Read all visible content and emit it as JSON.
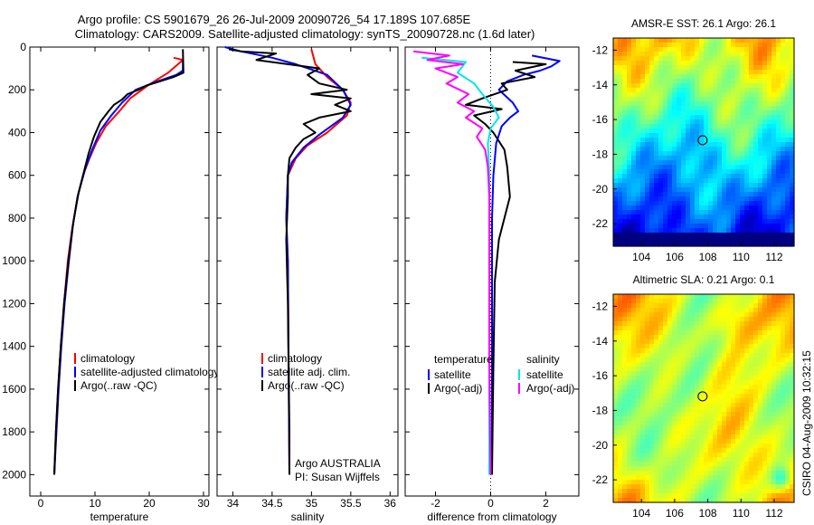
{
  "header": {
    "line1": "Argo profile: CS 5901679_26 26-Jul-2009 20090726_54 17.189S 107.685E",
    "line2": "Climatology: CARS2009. Satellite-adjusted climatology: synTS_20090728.nc (1.6d later)"
  },
  "credits": {
    "program": "Argo AUSTRALIA",
    "pi": "PI: Susan Wijffels",
    "stamp": "CSIRO 04-Aug-2009 10:32:15"
  },
  "colors": {
    "climatology": "#ff0000",
    "satellite": "#0000ff",
    "argo": "#000000",
    "sat_salinity": "#00e5e5",
    "argo_salinity_adj": "#ff00ff"
  },
  "chart_data": [
    {
      "type": "line",
      "name": "temperature",
      "xlabel": "temperature",
      "xlim": [
        -2,
        31
      ],
      "ylim": [
        2100,
        0
      ],
      "xticks": [
        "0",
        "10",
        "20",
        "30"
      ],
      "xtick_values": [
        0,
        10,
        20,
        30
      ],
      "yticks": [
        "0",
        "200",
        "400",
        "600",
        "800",
        "1000",
        "1200",
        "1400",
        "1600",
        "1800",
        "2000"
      ],
      "ytick_values": [
        0,
        200,
        400,
        600,
        800,
        1000,
        1200,
        1400,
        1600,
        1800,
        2000
      ],
      "legend": [
        "climatology",
        "satellite-adjusted climatology",
        "Argo(..raw -QC)"
      ],
      "series": [
        {
          "name": "climatology",
          "color": "climatology",
          "points": [
            [
              24.5,
              50
            ],
            [
              26.2,
              60
            ],
            [
              23.5,
              120
            ],
            [
              20,
              175
            ],
            [
              16.5,
              240
            ],
            [
              14.5,
              300
            ],
            [
              12,
              370
            ],
            [
              10.2,
              450
            ],
            [
              9,
              520
            ],
            [
              7.8,
              600
            ],
            [
              6.8,
              700
            ],
            [
              5.8,
              850
            ],
            [
              5,
              1000
            ],
            [
              4.3,
              1200
            ],
            [
              3.7,
              1400
            ],
            [
              3.2,
              1600
            ],
            [
              2.8,
              1800
            ],
            [
              2.5,
              2000
            ]
          ]
        },
        {
          "name": "satellite-adjusted climatology",
          "color": "satellite",
          "points": [
            [
              26.2,
              60
            ],
            [
              26.2,
              110
            ],
            [
              25,
              130
            ],
            [
              21,
              165
            ],
            [
              17.5,
              200
            ],
            [
              15,
              260
            ],
            [
              13,
              320
            ],
            [
              11,
              390
            ],
            [
              9.5,
              480
            ],
            [
              8.2,
              570
            ],
            [
              7,
              680
            ],
            [
              6,
              820
            ],
            [
              5.2,
              1000
            ],
            [
              4.4,
              1200
            ],
            [
              3.8,
              1400
            ],
            [
              3.3,
              1600
            ],
            [
              2.9,
              1800
            ],
            [
              2.5,
              2000
            ]
          ]
        },
        {
          "name": "Argo(..raw -QC)",
          "color": "argo",
          "points": [
            [
              26.2,
              10
            ],
            [
              26.3,
              120
            ],
            [
              24.5,
              140
            ],
            [
              22,
              160
            ],
            [
              19.5,
              180
            ],
            [
              18,
              200
            ],
            [
              16,
              220
            ],
            [
              15,
              245
            ],
            [
              13.5,
              270
            ],
            [
              12.5,
              300
            ],
            [
              11,
              350
            ],
            [
              9.8,
              420
            ],
            [
              8.8,
              500
            ],
            [
              7.8,
              600
            ],
            [
              6.8,
              700
            ],
            [
              5.9,
              840
            ],
            [
              5.1,
              1000
            ],
            [
              4.3,
              1200
            ],
            [
              3.7,
              1400
            ],
            [
              3.2,
              1600
            ],
            [
              2.8,
              1800
            ],
            [
              2.5,
              2000
            ]
          ]
        }
      ]
    },
    {
      "type": "line",
      "name": "salinity",
      "xlabel": "salinity",
      "xlim": [
        33.8,
        36.1
      ],
      "ylim": [
        2100,
        0
      ],
      "xticks": [
        "34",
        "34.5",
        "35",
        "35.5",
        "36"
      ],
      "xtick_values": [
        34,
        34.5,
        35,
        35.5,
        36
      ],
      "legend": [
        "climatology",
        "satellite adj. clim.",
        "Argo(..raw -QC)"
      ],
      "series": [
        {
          "name": "climatology",
          "color": "climatology",
          "points": [
            [
              35.0,
              10
            ],
            [
              35.05,
              80
            ],
            [
              35.2,
              140
            ],
            [
              35.4,
              200
            ],
            [
              35.5,
              260
            ],
            [
              35.45,
              320
            ],
            [
              35.2,
              400
            ],
            [
              34.95,
              460
            ],
            [
              34.8,
              520
            ],
            [
              34.7,
              600
            ],
            [
              34.68,
              800
            ],
            [
              34.7,
              1000
            ],
            [
              34.71,
              1500
            ],
            [
              34.72,
              2000
            ]
          ]
        },
        {
          "name": "satellite adj. clim.",
          "color": "satellite",
          "points": [
            [
              33.9,
              0
            ],
            [
              34.1,
              20
            ],
            [
              34.5,
              50
            ],
            [
              34.8,
              80
            ],
            [
              35.2,
              130
            ],
            [
              35.4,
              200
            ],
            [
              35.5,
              270
            ],
            [
              35.4,
              330
            ],
            [
              35.1,
              410
            ],
            [
              34.9,
              470
            ],
            [
              34.75,
              540
            ],
            [
              34.7,
              600
            ],
            [
              34.68,
              800
            ],
            [
              34.7,
              1000
            ],
            [
              34.71,
              1500
            ],
            [
              34.72,
              2000
            ]
          ]
        },
        {
          "name": "Argo(..raw -QC)",
          "color": "argo",
          "points": [
            [
              33.95,
              10
            ],
            [
              34.1,
              20
            ],
            [
              34.55,
              30
            ],
            [
              34.3,
              60
            ],
            [
              34.9,
              90
            ],
            [
              35.1,
              100
            ],
            [
              34.95,
              130
            ],
            [
              35.1,
              170
            ],
            [
              35.45,
              200
            ],
            [
              35.0,
              220
            ],
            [
              35.5,
              240
            ],
            [
              35.3,
              270
            ],
            [
              35.5,
              300
            ],
            [
              35.1,
              330
            ],
            [
              34.9,
              360
            ],
            [
              35.05,
              400
            ],
            [
              34.9,
              430
            ],
            [
              34.8,
              470
            ],
            [
              34.72,
              520
            ],
            [
              34.7,
              600
            ],
            [
              34.7,
              700
            ],
            [
              34.68,
              900
            ],
            [
              34.7,
              1200
            ],
            [
              34.71,
              1500
            ],
            [
              34.72,
              1800
            ],
            [
              34.72,
              2000
            ]
          ]
        }
      ]
    },
    {
      "type": "line",
      "name": "difference",
      "xlabel": "difference from climatology",
      "xlim": [
        -3.1,
        3.2
      ],
      "ylim": [
        2100,
        0
      ],
      "xticks": [
        "-2",
        "0",
        "2"
      ],
      "xtick_values": [
        -2,
        0,
        2
      ],
      "zero_line": true,
      "legend_left_title": "temperature",
      "legend_right_title": "salinity",
      "legend_left": [
        "satellite",
        "Argo(-adj)"
      ],
      "legend_right": [
        "satellite",
        "Argo(-adj)"
      ],
      "series": [
        {
          "name": "temperature satellite",
          "color": "satellite",
          "points": [
            [
              1.5,
              40
            ],
            [
              2.5,
              65
            ],
            [
              2.2,
              90
            ],
            [
              1.8,
              110
            ],
            [
              1.2,
              130
            ],
            [
              0.6,
              160
            ],
            [
              0.3,
              200
            ],
            [
              0.8,
              260
            ],
            [
              1.0,
              300
            ],
            [
              0.7,
              330
            ],
            [
              0.4,
              370
            ],
            [
              0.2,
              450
            ],
            [
              0.1,
              600
            ],
            [
              0.05,
              800
            ],
            [
              0.05,
              1000
            ],
            [
              0.05,
              1500
            ],
            [
              0.05,
              2000
            ]
          ]
        },
        {
          "name": "temperature Argo(-adj)",
          "color": "argo",
          "points": [
            [
              0.8,
              70
            ],
            [
              2.0,
              80
            ],
            [
              0.9,
              110
            ],
            [
              1.6,
              140
            ],
            [
              0.4,
              170
            ],
            [
              0.6,
              200
            ],
            [
              -0.3,
              240
            ],
            [
              -0.9,
              270
            ],
            [
              0.4,
              290
            ],
            [
              -0.6,
              320
            ],
            [
              -0.2,
              360
            ],
            [
              0.1,
              400
            ],
            [
              0.5,
              480
            ],
            [
              0.6,
              560
            ],
            [
              0.7,
              700
            ],
            [
              0.5,
              800
            ],
            [
              0.3,
              900
            ],
            [
              0.15,
              1100
            ],
            [
              0.1,
              1500
            ],
            [
              0.05,
              2000
            ]
          ]
        },
        {
          "name": "salinity satellite",
          "color": "sat_salinity",
          "points": [
            [
              -2.5,
              50
            ],
            [
              -0.9,
              70
            ],
            [
              -1.2,
              120
            ],
            [
              -0.6,
              170
            ],
            [
              -0.3,
              220
            ],
            [
              0.1,
              280
            ],
            [
              0.3,
              330
            ],
            [
              0.0,
              380
            ],
            [
              -0.1,
              450
            ],
            [
              -0.05,
              600
            ],
            [
              -0.05,
              1000
            ],
            [
              -0.05,
              1500
            ],
            [
              -0.05,
              2000
            ]
          ]
        },
        {
          "name": "salinity Argo(-adj)",
          "color": "argo_salinity_adj",
          "points": [
            [
              -2.8,
              20
            ],
            [
              -1.5,
              40
            ],
            [
              -2.3,
              60
            ],
            [
              -1.0,
              80
            ],
            [
              -2.0,
              100
            ],
            [
              -1.2,
              140
            ],
            [
              -1.6,
              170
            ],
            [
              -0.8,
              220
            ],
            [
              -1.2,
              260
            ],
            [
              -0.6,
              300
            ],
            [
              -0.9,
              330
            ],
            [
              -0.3,
              380
            ],
            [
              -0.5,
              420
            ],
            [
              -0.2,
              480
            ],
            [
              -0.1,
              560
            ],
            [
              -0.05,
              700
            ],
            [
              -0.05,
              1000
            ],
            [
              -0.05,
              1500
            ],
            [
              0.0,
              2000
            ]
          ]
        }
      ]
    },
    {
      "type": "heatmap",
      "name": "amsr-e sst",
      "title": "AMSR-E SST: 26.1  Argo: 26.1",
      "xticks": [
        "104",
        "106",
        "108",
        "110",
        "112"
      ],
      "yticks": [
        "-12",
        "-14",
        "-16",
        "-18",
        "-20",
        "-22"
      ],
      "xlim": [
        102.3,
        113.2
      ],
      "ylim": [
        -23.3,
        -11.3
      ],
      "marker": [
        107.685,
        -17.189
      ],
      "pattern": "sst"
    },
    {
      "type": "heatmap",
      "name": "altimetric sla",
      "title": "Altimetric SLA: 0.21  Argo: 0.1",
      "xticks": [
        "104",
        "106",
        "108",
        "110",
        "112"
      ],
      "yticks": [
        "-12",
        "-14",
        "-16",
        "-18",
        "-20",
        "-22"
      ],
      "xlim": [
        102.3,
        113.2
      ],
      "ylim": [
        -23.3,
        -11.3
      ],
      "marker": [
        107.685,
        -17.189
      ],
      "pattern": "sla"
    }
  ]
}
